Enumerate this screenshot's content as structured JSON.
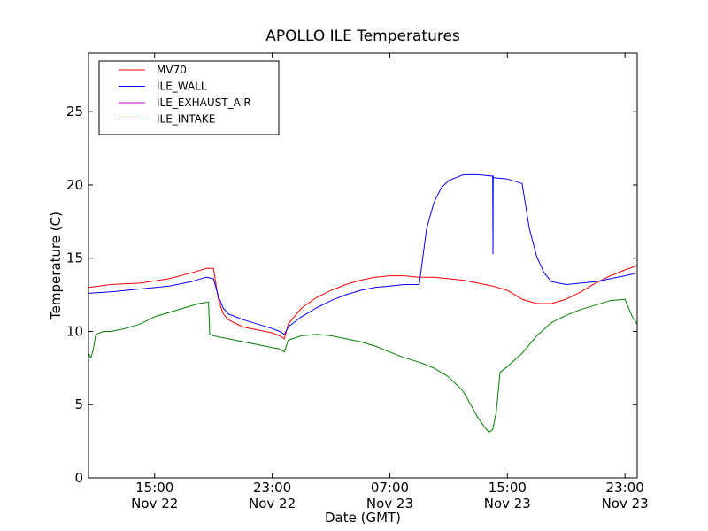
{
  "chart_data": {
    "type": "line",
    "title": "APOLLO ILE Temperatures",
    "xlabel": "Date (GMT)",
    "ylabel": "Temperature (C)",
    "x_unit": "datetime",
    "xlim": [
      "2011-11-22 10:30",
      "2011-11-23 23:50"
    ],
    "ylim": [
      0,
      29
    ],
    "yticks": [
      0,
      5,
      10,
      15,
      20,
      25
    ],
    "xticks": [
      {
        "t": "2011-11-22 15:00",
        "line1": "15:00",
        "line2": "Nov 22"
      },
      {
        "t": "2011-11-22 23:00",
        "line1": "23:00",
        "line2": "Nov 22"
      },
      {
        "t": "2011-11-23 07:00",
        "line1": "07:00",
        "line2": "Nov 23"
      },
      {
        "t": "2011-11-23 15:00",
        "line1": "15:00",
        "line2": "Nov 23"
      },
      {
        "t": "2011-11-23 23:00",
        "line1": "23:00",
        "line2": "Nov 23"
      }
    ],
    "grid": false,
    "legend_position": "upper-left",
    "series": [
      {
        "name": "MV70",
        "color": "#ff0000",
        "x": [
          "2011-11-22 10:30",
          "2011-11-22 12:00",
          "2011-11-22 14:00",
          "2011-11-22 16:00",
          "2011-11-22 17:30",
          "2011-11-22 18:30",
          "2011-11-22 19:00",
          "2011-11-22 19:20",
          "2011-11-22 19:40",
          "2011-11-22 20:00",
          "2011-11-22 21:00",
          "2011-11-22 22:00",
          "2011-11-22 23:00",
          "2011-11-22 23:30",
          "2011-11-22 23:50",
          "2011-11-23 00:05",
          "2011-11-23 01:00",
          "2011-11-23 02:00",
          "2011-11-23 03:00",
          "2011-11-23 04:00",
          "2011-11-23 05:00",
          "2011-11-23 06:00",
          "2011-11-23 07:00",
          "2011-11-23 08:00",
          "2011-11-23 09:00",
          "2011-11-23 10:00",
          "2011-11-23 11:00",
          "2011-11-23 12:00",
          "2011-11-23 13:00",
          "2011-11-23 14:00",
          "2011-11-23 15:00",
          "2011-11-23 16:00",
          "2011-11-23 17:00",
          "2011-11-23 18:00",
          "2011-11-23 19:00",
          "2011-11-23 20:00",
          "2011-11-23 21:00",
          "2011-11-23 22:00",
          "2011-11-23 23:00",
          "2011-11-23 23:50"
        ],
        "values": [
          13.0,
          13.2,
          13.3,
          13.6,
          14.0,
          14.3,
          14.3,
          12.2,
          11.2,
          10.8,
          10.3,
          10.1,
          9.9,
          9.7,
          9.5,
          10.5,
          11.6,
          12.3,
          12.8,
          13.2,
          13.5,
          13.7,
          13.8,
          13.8,
          13.7,
          13.7,
          13.6,
          13.5,
          13.3,
          13.1,
          12.8,
          12.2,
          11.9,
          11.9,
          12.2,
          12.7,
          13.3,
          13.8,
          14.2,
          14.5
        ]
      },
      {
        "name": "ILE_WALL",
        "color": "#0000ff",
        "x": [
          "2011-11-22 10:30",
          "2011-11-22 12:00",
          "2011-11-22 14:00",
          "2011-11-22 16:00",
          "2011-11-22 17:30",
          "2011-11-22 18:30",
          "2011-11-22 19:00",
          "2011-11-22 19:20",
          "2011-11-22 19:40",
          "2011-11-22 20:00",
          "2011-11-22 21:00",
          "2011-11-22 22:00",
          "2011-11-22 23:00",
          "2011-11-22 23:30",
          "2011-11-22 23:50",
          "2011-11-23 00:05",
          "2011-11-23 01:00",
          "2011-11-23 02:00",
          "2011-11-23 03:00",
          "2011-11-23 04:00",
          "2011-11-23 05:00",
          "2011-11-23 06:00",
          "2011-11-23 07:00",
          "2011-11-23 08:00",
          "2011-11-23 09:00",
          "2011-11-23 09:30",
          "2011-11-23 10:00",
          "2011-11-23 10:30",
          "2011-11-23 11:00",
          "2011-11-23 11:30",
          "2011-11-23 12:00",
          "2011-11-23 13:00",
          "2011-11-23 14:00",
          "2011-11-23 14:01",
          "2011-11-23 14:02",
          "2011-11-23 14:03",
          "2011-11-23 15:00",
          "2011-11-23 16:00",
          "2011-11-23 16:30",
          "2011-11-23 17:00",
          "2011-11-23 17:30",
          "2011-11-23 18:00",
          "2011-11-23 19:00",
          "2011-11-23 20:00",
          "2011-11-23 21:00",
          "2011-11-23 22:00",
          "2011-11-23 23:00",
          "2011-11-23 23:50"
        ],
        "values": [
          12.6,
          12.7,
          12.9,
          13.1,
          13.4,
          13.7,
          13.6,
          12.4,
          11.6,
          11.2,
          10.8,
          10.5,
          10.2,
          10.0,
          9.8,
          10.3,
          11.0,
          11.6,
          12.1,
          12.5,
          12.8,
          13.0,
          13.1,
          13.2,
          13.2,
          17.0,
          18.8,
          19.8,
          20.3,
          20.5,
          20.7,
          20.7,
          20.6,
          15.3,
          20.6,
          20.5,
          20.4,
          20.1,
          17.0,
          15.1,
          14.0,
          13.4,
          13.2,
          13.3,
          13.4,
          13.6,
          13.8,
          14.0
        ]
      },
      {
        "name": "ILE_EXHAUST_AIR",
        "color": "#bf00bf",
        "x": [],
        "values": []
      },
      {
        "name": "ILE_INTAKE",
        "color": "#008000",
        "x": [
          "2011-11-22 10:30",
          "2011-11-22 10:40",
          "2011-11-22 10:50",
          "2011-11-22 11:00",
          "2011-11-22 11:30",
          "2011-11-22 12:00",
          "2011-11-22 13:00",
          "2011-11-22 14:00",
          "2011-11-22 15:00",
          "2011-11-22 16:00",
          "2011-11-22 17:00",
          "2011-11-22 18:00",
          "2011-11-22 18:40",
          "2011-11-22 18:45",
          "2011-11-22 19:00",
          "2011-11-22 20:00",
          "2011-11-22 21:00",
          "2011-11-22 22:00",
          "2011-11-22 23:00",
          "2011-11-22 23:30",
          "2011-11-22 23:50",
          "2011-11-23 00:05",
          "2011-11-23 01:00",
          "2011-11-23 02:00",
          "2011-11-23 03:00",
          "2011-11-23 04:00",
          "2011-11-23 05:00",
          "2011-11-23 06:00",
          "2011-11-23 07:00",
          "2011-11-23 08:00",
          "2011-11-23 09:00",
          "2011-11-23 10:00",
          "2011-11-23 11:00",
          "2011-11-23 12:00",
          "2011-11-23 12:30",
          "2011-11-23 13:00",
          "2011-11-23 13:30",
          "2011-11-23 13:45",
          "2011-11-23 14:00",
          "2011-11-23 14:15",
          "2011-11-23 14:30",
          "2011-11-23 15:00",
          "2011-11-23 16:00",
          "2011-11-23 17:00",
          "2011-11-23 18:00",
          "2011-11-23 19:00",
          "2011-11-23 20:00",
          "2011-11-23 21:00",
          "2011-11-23 22:00",
          "2011-11-23 23:00",
          "2011-11-23 23:30",
          "2011-11-23 23:50"
        ],
        "values": [
          8.5,
          8.2,
          8.8,
          9.8,
          10.0,
          10.0,
          10.2,
          10.5,
          11.0,
          11.3,
          11.6,
          11.9,
          12.0,
          9.8,
          9.7,
          9.5,
          9.3,
          9.1,
          8.9,
          8.8,
          8.6,
          9.4,
          9.7,
          9.8,
          9.7,
          9.5,
          9.3,
          9.0,
          8.6,
          8.2,
          7.9,
          7.5,
          6.9,
          5.9,
          5.0,
          4.1,
          3.4,
          3.1,
          3.3,
          4.5,
          7.2,
          7.6,
          8.5,
          9.7,
          10.6,
          11.1,
          11.5,
          11.8,
          12.1,
          12.2,
          11.0,
          10.5
        ]
      }
    ]
  }
}
